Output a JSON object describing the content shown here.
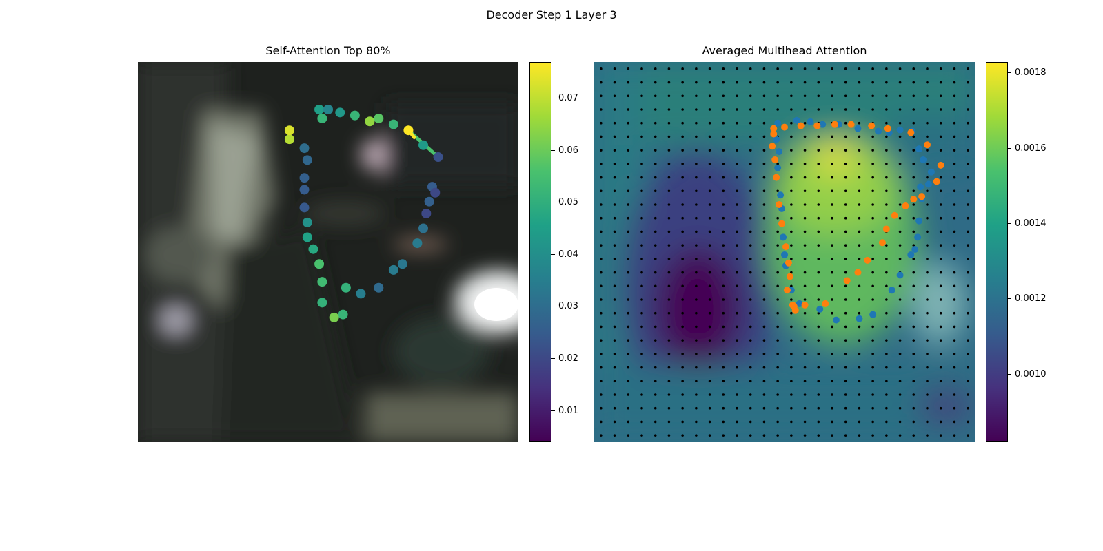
{
  "figure": {
    "title": "Decoder Step 1 Layer 3",
    "left_title": "Self-Attention Top 80%",
    "right_title": "Averaged Multihead Attention"
  },
  "colors": {
    "viridis": [
      "#440154",
      "#46327e",
      "#365c8d",
      "#277f8e",
      "#1fa187",
      "#4ac16d",
      "#a0da39",
      "#fde725"
    ],
    "blue_series": "#1f77b4",
    "orange_series": "#ff7f0e",
    "grid_dots": "#000000"
  },
  "chart_data": [
    {
      "type": "scatter",
      "panel": "left",
      "title": "Self-Attention Top 80%",
      "background": "blurred photograph",
      "colorbar": {
        "range": [
          0.004,
          0.077
        ],
        "ticks": [
          "0.01",
          "0.02",
          "0.03",
          "0.04",
          "0.05",
          "0.06",
          "0.07"
        ],
        "colormap": "viridis"
      },
      "x": [
        61,
        62,
        64,
        68,
        73,
        78,
        81,
        86,
        91,
        96,
        101,
        99,
        100,
        98,
        97,
        96,
        94,
        89,
        86,
        81,
        75,
        70,
        69,
        66,
        62,
        62,
        61,
        59,
        57,
        57,
        56,
        56,
        56,
        57,
        56,
        51,
        51
      ],
      "y": [
        16,
        19,
        16,
        17,
        18,
        20,
        19,
        21,
        23,
        28,
        32,
        42,
        44,
        47,
        51,
        56,
        61,
        68,
        70,
        76,
        78,
        76,
        85,
        86,
        81,
        74,
        68,
        63,
        59,
        54,
        49,
        43,
        39,
        33,
        29,
        26,
        23
      ],
      "values": [
        0.045,
        0.052,
        0.037,
        0.043,
        0.052,
        0.065,
        0.058,
        0.052,
        0.077,
        0.044,
        0.022,
        0.025,
        0.02,
        0.026,
        0.02,
        0.031,
        0.034,
        0.033,
        0.034,
        0.029,
        0.035,
        0.051,
        0.052,
        0.062,
        0.051,
        0.054,
        0.056,
        0.048,
        0.046,
        0.041,
        0.024,
        0.025,
        0.026,
        0.028,
        0.03,
        0.069,
        0.073
      ],
      "highlight": {
        "from_index": 8,
        "to_index": 10,
        "color": "#4ac16d"
      }
    },
    {
      "type": "scatter",
      "panel": "right",
      "title": "Averaged Multihead Attention",
      "background": "attention heatmap",
      "colorbar": {
        "range": [
          0.00082,
          0.00183
        ],
        "ticks": [
          "0.0010",
          "0.0012",
          "0.0014",
          "0.0016",
          "0.0018"
        ],
        "colormap": "viridis"
      },
      "grid": {
        "columns": 28,
        "rows": 28
      },
      "series": [
        {
          "color": "#1f77b4",
          "x": [
            13.5,
            13.4,
            13.6,
            13.5,
            13.7,
            13.8,
            13.9,
            14.0,
            14.1,
            14.5,
            15.1,
            16.6,
            17.8,
            19.5,
            20.5,
            21.9,
            22.5,
            23.3,
            23.6,
            23.8,
            23.9,
            24.1,
            24.0,
            24.6,
            24.8,
            24.2,
            23.9,
            23.4,
            22.5,
            21.7,
            20.9,
            19.4,
            18.0,
            16.8,
            15.9,
            14.9
          ],
          "y": [
            4.5,
            5.7,
            6.6,
            7.8,
            9.8,
            10.8,
            12.9,
            14.2,
            15.0,
            16.8,
            17.8,
            18.2,
            19.0,
            18.9,
            18.6,
            16.8,
            15.7,
            14.2,
            13.8,
            12.9,
            11.7,
            10.1,
            9.2,
            9.0,
            8.1,
            7.2,
            6.4,
            5.1,
            5.0,
            5.2,
            5.1,
            4.9,
            4.6,
            4.6,
            4.4,
            4.3
          ]
        },
        {
          "color": "#ff7f0e",
          "x": [
            13.2,
            13.1,
            13.3,
            13.4,
            13.6,
            13.8,
            14.1,
            14.3,
            14.4,
            14.2,
            14.6,
            14.7,
            14.8,
            15.5,
            17.0,
            18.6,
            19.4,
            20.1,
            21.2,
            21.5,
            22.1,
            22.9,
            23.5,
            24.1,
            25.2,
            25.5,
            24.5,
            23.3,
            21.6,
            20.4,
            18.9,
            17.7,
            16.4,
            15.2,
            14.0,
            13.2
          ],
          "y": [
            5.3,
            6.2,
            7.2,
            8.5,
            10.5,
            11.9,
            13.6,
            14.8,
            15.8,
            16.8,
            17.9,
            18.0,
            18.3,
            17.9,
            17.8,
            16.1,
            15.5,
            14.6,
            13.3,
            12.3,
            11.3,
            10.6,
            10.1,
            9.9,
            8.8,
            7.6,
            6.1,
            5.2,
            4.9,
            4.7,
            4.6,
            4.6,
            4.7,
            4.7,
            4.8,
            4.9
          ]
        }
      ]
    }
  ]
}
